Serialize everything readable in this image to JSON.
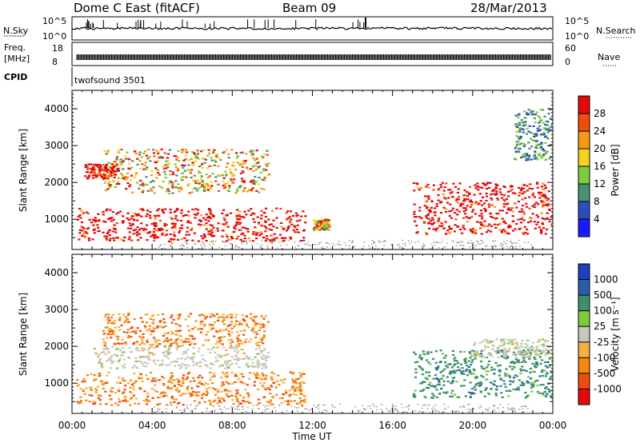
{
  "header": {
    "station": "Dome C East (fitACF)",
    "beam": "Beam 09",
    "date": "28/Mar/2013"
  },
  "panels": {
    "nsky_label": "N.Sky",
    "nsky_ticks": [
      "10^5",
      "10^0"
    ],
    "nsearch_label": "N.Search",
    "nsearch_ticks": [
      "10^5",
      "10^0"
    ],
    "freq_label_1": "Freq.",
    "freq_label_2": "[MHz]",
    "freq_ticks": [
      "18",
      "8"
    ],
    "nave_label": "Nave",
    "nave_ticks": [
      "60",
      "0"
    ],
    "cpid_label": "CPID",
    "cpid_value": "twofsound 3501"
  },
  "chart_data": [
    {
      "type": "heatmap",
      "title": "",
      "ylabel": "Slant Range [km]",
      "xlabel": "Time UT",
      "x_ticks": [
        "00:00",
        "04:00",
        "08:00",
        "12:00",
        "16:00",
        "20:00",
        "00:00"
      ],
      "x_range_hours": [
        0,
        24
      ],
      "y_ticks": [
        1000,
        2000,
        3000,
        4000
      ],
      "ylim": [
        180,
        4500
      ],
      "colorbar": {
        "label": "Power [dB]",
        "ticks": [
          "4",
          "8",
          "12",
          "16",
          "20",
          "24",
          "28"
        ],
        "colors": [
          "#1a1aff",
          "#2b4fb8",
          "#4a8f72",
          "#7ecb3c",
          "#f6d21e",
          "#f59a12",
          "#ee4d10",
          "#e60a0a"
        ]
      },
      "scatter_regions": [
        {
          "t": [
            0.2,
            11.6
          ],
          "r": [
            400,
            1300
          ],
          "value_level": "high (24-28+ dB)"
        },
        {
          "t": [
            1.5,
            9.8
          ],
          "r": [
            1700,
            2900
          ],
          "value_level": "mixed (8-24 dB)"
        },
        {
          "t": [
            0.6,
            2.3
          ],
          "r": [
            2100,
            2500
          ],
          "value_level": "high (28 dB)"
        },
        {
          "t": [
            12.0,
            12.8
          ],
          "r": [
            700,
            1000
          ],
          "value_level": "mixed"
        },
        {
          "t": [
            17.0,
            23.9
          ],
          "r": [
            600,
            2000
          ],
          "value_level": "high (20-28 dB)"
        },
        {
          "t": [
            22.0,
            23.9
          ],
          "r": [
            2600,
            4000
          ],
          "value_level": "low (4-12 dB)"
        }
      ]
    },
    {
      "type": "heatmap",
      "title": "",
      "ylabel": "Slant Range [km]",
      "xlabel": "Time UT",
      "x_ticks": [
        "00:00",
        "04:00",
        "08:00",
        "12:00",
        "16:00",
        "20:00",
        "00:00"
      ],
      "x_range_hours": [
        0,
        24
      ],
      "y_ticks": [
        1000,
        2000,
        3000,
        4000
      ],
      "ylim": [
        180,
        4500
      ],
      "colorbar": {
        "label": "Velocity  [m s⁻¹]",
        "ticks": [
          "-1000",
          "-500",
          "-100",
          "-25",
          "25",
          "100",
          "500",
          "1000"
        ],
        "colors": [
          "#e60a0a",
          "#ee4d10",
          "#f5860f",
          "#f5b042",
          "#c8c8bf",
          "#7ecb3c",
          "#3d8f6b",
          "#2a5fa8",
          "#1e3fbf"
        ]
      },
      "scatter_regions": [
        {
          "t": [
            0.2,
            11.6
          ],
          "r": [
            400,
            1300
          ],
          "value_level": "negative (-100 to -500 m/s)"
        },
        {
          "t": [
            1.0,
            9.8
          ],
          "r": [
            1400,
            2000
          ],
          "value_level": "near zero (-25 to 25 m/s)"
        },
        {
          "t": [
            1.5,
            9.8
          ],
          "r": [
            2000,
            2900
          ],
          "value_level": "negative (-100 m/s)"
        },
        {
          "t": [
            17.0,
            23.9
          ],
          "r": [
            600,
            1900
          ],
          "value_level": "positive (100-500 m/s)"
        },
        {
          "t": [
            20.0,
            23.9
          ],
          "r": [
            1700,
            2200
          ],
          "value_level": "near zero"
        }
      ]
    }
  ]
}
